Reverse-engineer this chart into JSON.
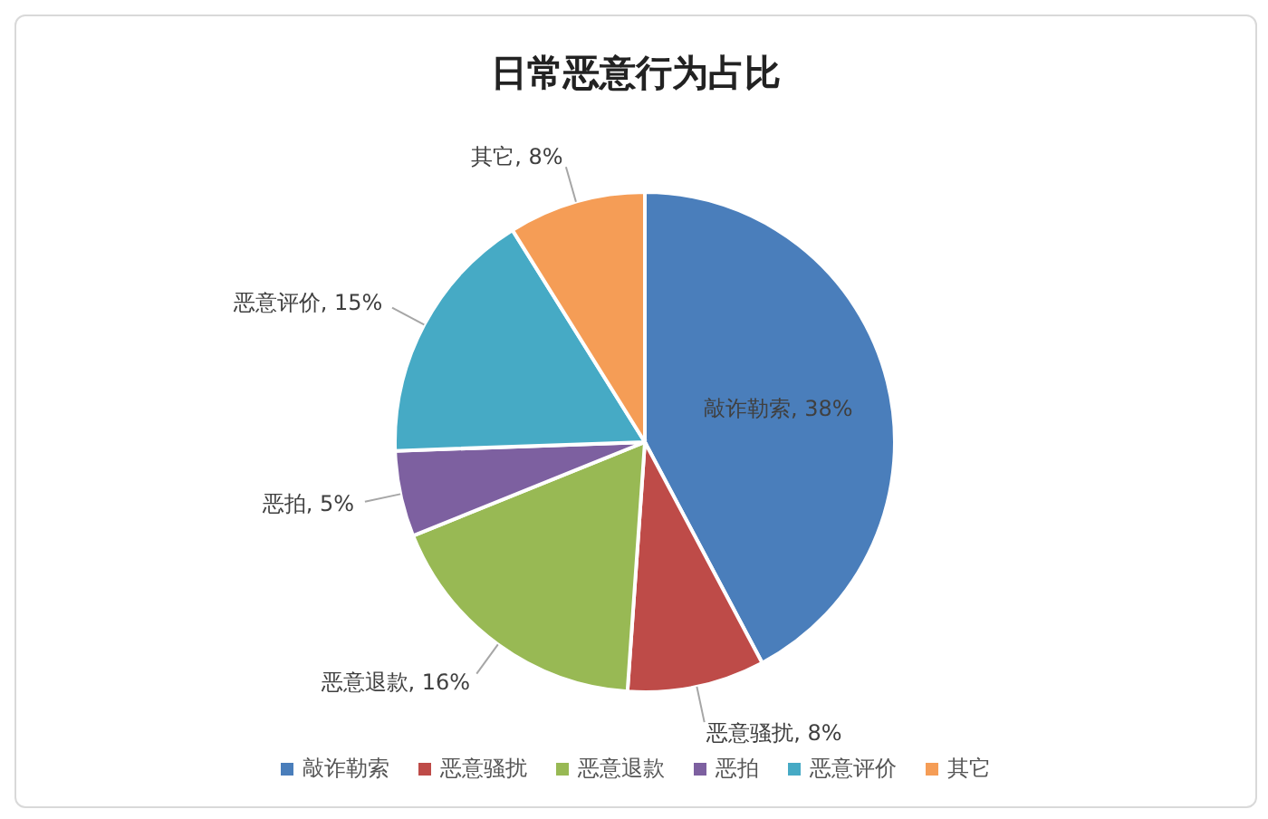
{
  "chart_data": {
    "type": "pie",
    "title": "日常恶意行为占比",
    "categories": [
      "敲诈勒索",
      "恶意骚扰",
      "恶意退款",
      "恶拍",
      "恶意评价",
      "其它"
    ],
    "values": [
      38,
      8,
      16,
      5,
      15,
      8
    ],
    "value_labels": [
      "敲诈勒索, 38%",
      "恶意骚扰, 8%",
      "恶意退款, 16%",
      "恶拍, 5%",
      "恶意评价, 15%",
      "其它, 8%"
    ],
    "colors": [
      "#4a7ebb",
      "#be4b48",
      "#98b954",
      "#7d60a0",
      "#46aac5",
      "#f59d56"
    ],
    "legend": "bottom"
  }
}
